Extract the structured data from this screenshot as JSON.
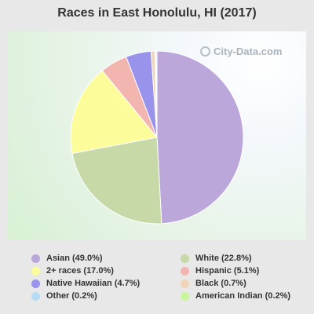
{
  "chart_data": {
    "type": "pie",
    "title": "Races in East Honolulu, HI (2017)",
    "slices": [
      {
        "label": "Asian",
        "value": 49.0,
        "color": "#bca7db"
      },
      {
        "label": "White",
        "value": 22.8,
        "color": "#c6d9a6"
      },
      {
        "label": "2+ races",
        "value": 17.0,
        "color": "#fcfc9a"
      },
      {
        "label": "Hispanic",
        "value": 5.1,
        "color": "#f3b5b0"
      },
      {
        "label": "Native Hawaiian",
        "value": 4.7,
        "color": "#9a93ec"
      },
      {
        "label": "Black",
        "value": 0.7,
        "color": "#f0d5b8"
      },
      {
        "label": "Other",
        "value": 0.2,
        "color": "#b6dcf5"
      },
      {
        "label": "American Indian",
        "value": 0.2,
        "color": "#c9f59c"
      }
    ],
    "legend": [
      {
        "text": "Asian (49.0%)",
        "color": "#bca7db"
      },
      {
        "text": "White (22.8%)",
        "color": "#c6d9a6"
      },
      {
        "text": "2+ races (17.0%)",
        "color": "#fcfc9a"
      },
      {
        "text": "Hispanic (5.1%)",
        "color": "#f3b5b0"
      },
      {
        "text": "Native Hawaiian (4.7%)",
        "color": "#9a93ec"
      },
      {
        "text": "Black (0.7%)",
        "color": "#f0d5b8"
      },
      {
        "text": "Other (0.2%)",
        "color": "#b6dcf5"
      },
      {
        "text": "American Indian (0.2%)",
        "color": "#c9f59c"
      }
    ],
    "legend_placement": "bottom"
  },
  "watermark": "City-Data.com"
}
